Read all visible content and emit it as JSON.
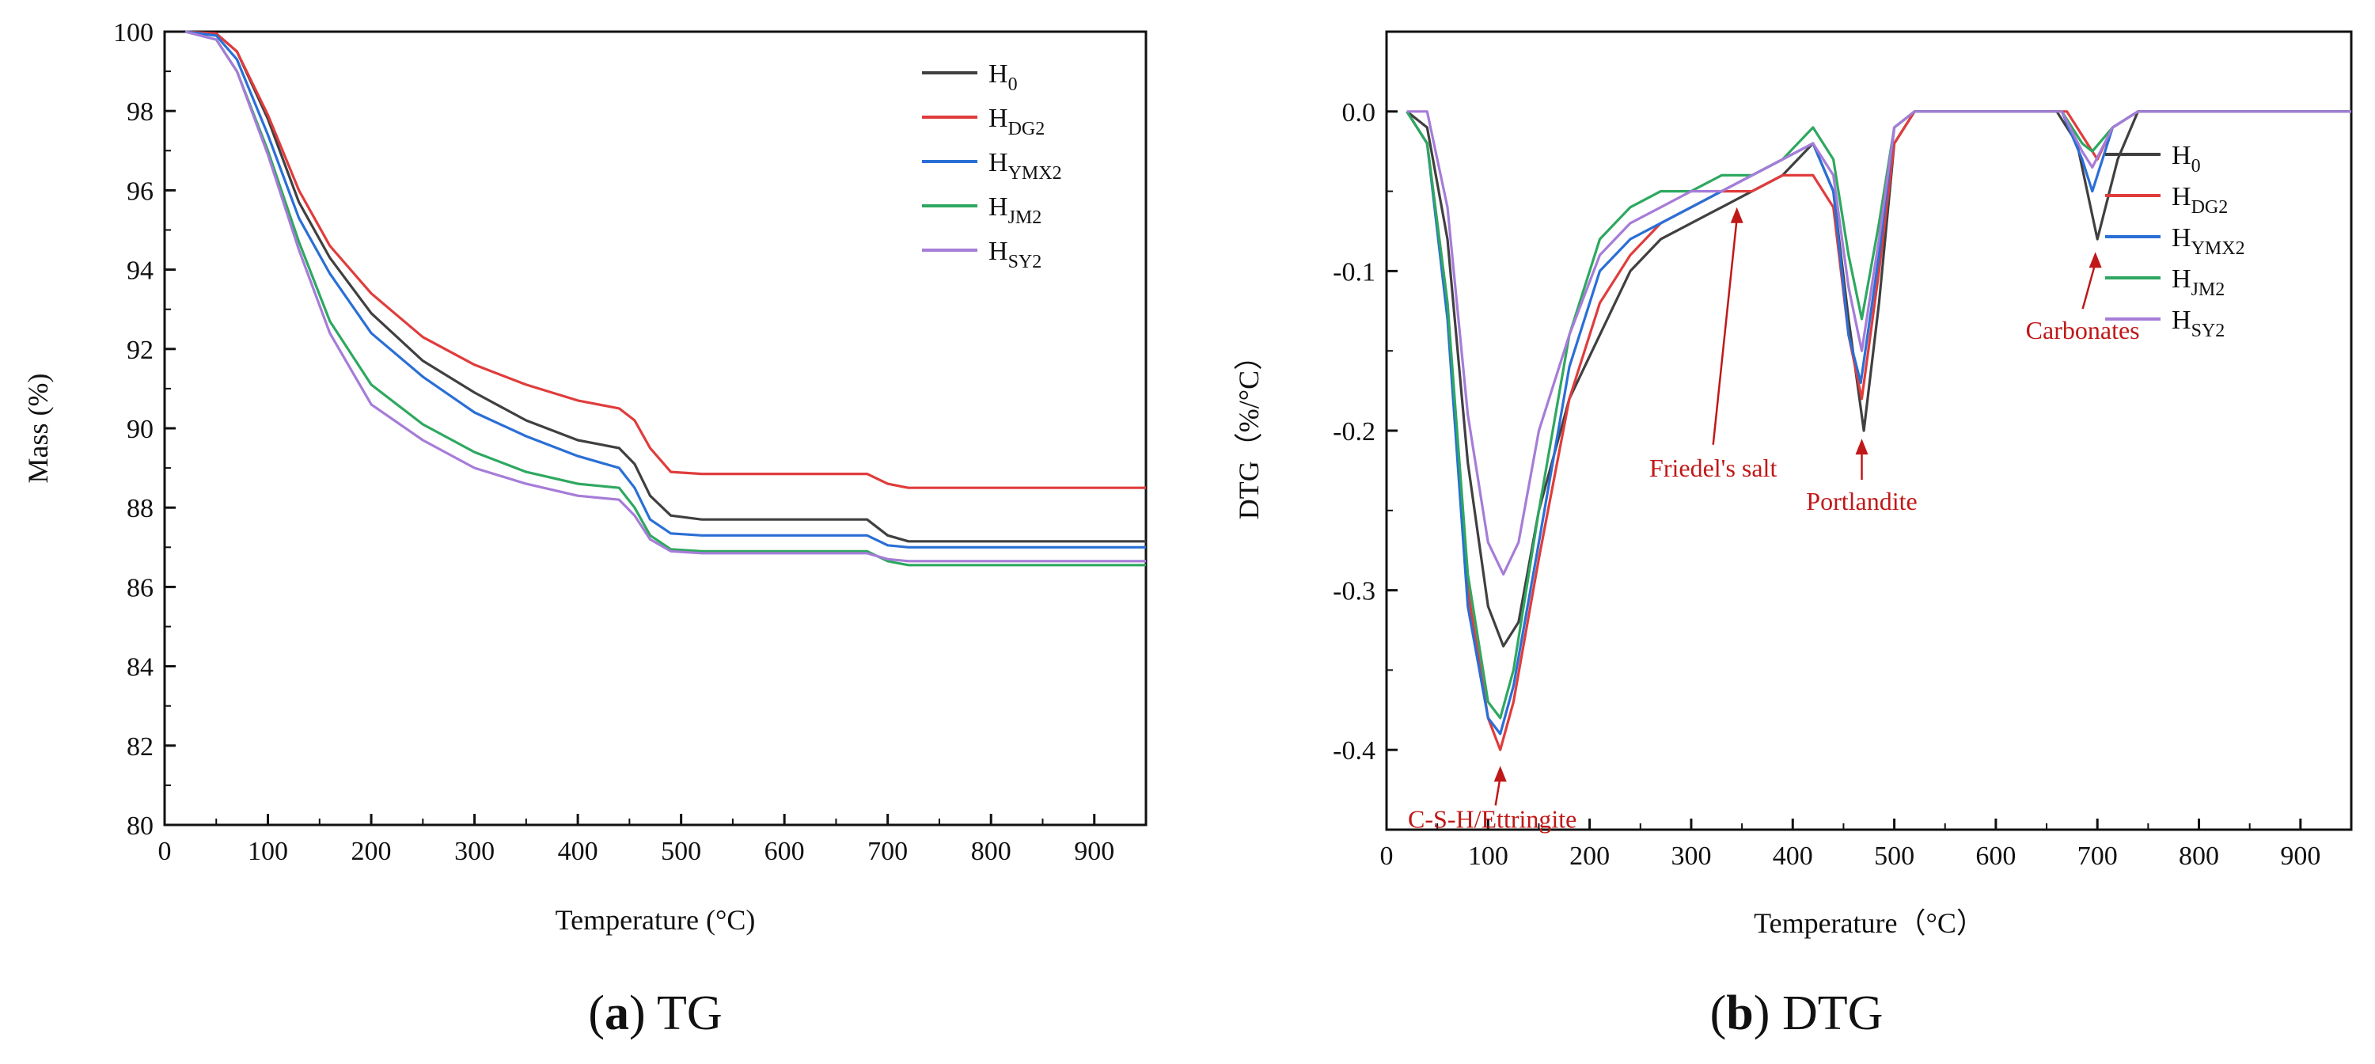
{
  "figure_captions": [
    {
      "letter": "a",
      "rest": " TG"
    },
    {
      "letter": "b",
      "rest": " DTG"
    }
  ],
  "colors": {
    "H0": "#404040",
    "HDG2": "#e03c3c",
    "HYMX2": "#2a6fd6",
    "HJM2": "#2ea860",
    "HSY2": "#a67cd8",
    "annotation": "#c01818",
    "axis": "#111111"
  },
  "legend_entries": [
    {
      "key": "H0",
      "base": "H",
      "sub": "0"
    },
    {
      "key": "HDG2",
      "base": "H",
      "sub": "DG2"
    },
    {
      "key": "HYMX2",
      "base": "H",
      "sub": "YMX2"
    },
    {
      "key": "HJM2",
      "base": "H",
      "sub": "JM2"
    },
    {
      "key": "HSY2",
      "base": "H",
      "sub": "SY2"
    }
  ],
  "chart_data": [
    {
      "id": "tg",
      "type": "line",
      "title": "",
      "xlabel": "Temperature (°C)",
      "ylabel": "Mass (%)",
      "xlim": [
        0,
        950
      ],
      "ylim": [
        80,
        100
      ],
      "xticks": [
        0,
        100,
        200,
        300,
        400,
        500,
        600,
        700,
        800,
        900
      ],
      "yticks": [
        80,
        82,
        84,
        86,
        88,
        90,
        92,
        94,
        96,
        98,
        100
      ],
      "legend_position": "top-right",
      "series": [
        {
          "key": "H0",
          "x": [
            20,
            50,
            70,
            100,
            130,
            160,
            200,
            250,
            300,
            350,
            400,
            440,
            455,
            470,
            490,
            520,
            600,
            680,
            700,
            720,
            800,
            950
          ],
          "y": [
            100,
            99.95,
            99.5,
            97.8,
            95.7,
            94.3,
            92.9,
            91.7,
            90.9,
            90.2,
            89.7,
            89.5,
            89.1,
            88.3,
            87.8,
            87.7,
            87.7,
            87.7,
            87.3,
            87.15,
            87.15,
            87.15
          ]
        },
        {
          "key": "HDG2",
          "x": [
            20,
            50,
            70,
            100,
            130,
            160,
            200,
            250,
            300,
            350,
            400,
            440,
            455,
            470,
            490,
            520,
            600,
            680,
            700,
            720,
            800,
            950
          ],
          "y": [
            100,
            99.95,
            99.5,
            97.9,
            96.0,
            94.6,
            93.4,
            92.3,
            91.6,
            91.1,
            90.7,
            90.5,
            90.2,
            89.5,
            88.9,
            88.85,
            88.85,
            88.85,
            88.6,
            88.5,
            88.5,
            88.5
          ]
        },
        {
          "key": "HYMX2",
          "x": [
            20,
            50,
            70,
            100,
            130,
            160,
            200,
            250,
            300,
            350,
            400,
            440,
            455,
            470,
            490,
            520,
            600,
            680,
            700,
            720,
            800,
            950
          ],
          "y": [
            100,
            99.9,
            99.3,
            97.4,
            95.3,
            93.9,
            92.4,
            91.3,
            90.4,
            89.8,
            89.3,
            89.0,
            88.5,
            87.7,
            87.35,
            87.3,
            87.3,
            87.3,
            87.05,
            87.0,
            87.0,
            87.0
          ]
        },
        {
          "key": "HJM2",
          "x": [
            20,
            50,
            70,
            100,
            130,
            160,
            200,
            250,
            300,
            350,
            400,
            440,
            455,
            470,
            490,
            520,
            600,
            680,
            700,
            720,
            800,
            950
          ],
          "y": [
            100,
            99.8,
            99.0,
            97.0,
            94.7,
            92.7,
            91.1,
            90.1,
            89.4,
            88.9,
            88.6,
            88.5,
            88.0,
            87.3,
            86.95,
            86.9,
            86.9,
            86.9,
            86.65,
            86.55,
            86.55,
            86.55
          ]
        },
        {
          "key": "HSY2",
          "x": [
            20,
            50,
            70,
            100,
            130,
            160,
            200,
            250,
            300,
            350,
            400,
            440,
            455,
            470,
            490,
            520,
            600,
            680,
            700,
            720,
            800,
            950
          ],
          "y": [
            100,
            99.8,
            99.0,
            96.9,
            94.5,
            92.4,
            90.6,
            89.7,
            89.0,
            88.6,
            88.3,
            88.2,
            87.8,
            87.2,
            86.9,
            86.85,
            86.85,
            86.85,
            86.7,
            86.65,
            86.65,
            86.65
          ]
        }
      ]
    },
    {
      "id": "dtg",
      "type": "line",
      "title": "",
      "xlabel": "Temperature（°C）",
      "ylabel": "DTG（%/°C）",
      "xlim": [
        0,
        950
      ],
      "ylim": [
        -0.45,
        0.05
      ],
      "xticks": [
        0,
        100,
        200,
        300,
        400,
        500,
        600,
        700,
        800,
        900
      ],
      "yticks": [
        -0.4,
        -0.3,
        -0.2,
        -0.1,
        0.0
      ],
      "ytick_labels": [
        "-0.4",
        "-0.3",
        "-0.2",
        "-0.1",
        "0.0"
      ],
      "legend_position": "top-right",
      "series": [
        {
          "key": "H0",
          "x": [
            20,
            40,
            60,
            80,
            100,
            115,
            130,
            150,
            180,
            210,
            240,
            270,
            300,
            330,
            360,
            390,
            420,
            440,
            455,
            470,
            485,
            500,
            520,
            660,
            680,
            700,
            720,
            740,
            950
          ],
          "y": [
            0,
            -0.01,
            -0.08,
            -0.22,
            -0.31,
            -0.335,
            -0.32,
            -0.25,
            -0.18,
            -0.14,
            -0.1,
            -0.08,
            -0.07,
            -0.06,
            -0.05,
            -0.04,
            -0.02,
            -0.05,
            -0.13,
            -0.2,
            -0.12,
            -0.02,
            0,
            0,
            -0.02,
            -0.08,
            -0.03,
            0,
            0
          ]
        },
        {
          "key": "HDG2",
          "x": [
            20,
            40,
            60,
            80,
            100,
            112,
            125,
            150,
            180,
            210,
            240,
            270,
            300,
            330,
            360,
            390,
            420,
            440,
            455,
            468,
            485,
            500,
            520,
            670,
            690,
            700,
            715,
            740,
            950
          ],
          "y": [
            0,
            -0.02,
            -0.12,
            -0.3,
            -0.38,
            -0.4,
            -0.37,
            -0.28,
            -0.18,
            -0.12,
            -0.09,
            -0.07,
            -0.06,
            -0.05,
            -0.05,
            -0.04,
            -0.04,
            -0.06,
            -0.14,
            -0.18,
            -0.1,
            -0.02,
            0,
            0,
            -0.02,
            -0.03,
            -0.01,
            0,
            0
          ]
        },
        {
          "key": "HYMX2",
          "x": [
            20,
            40,
            60,
            80,
            100,
            112,
            125,
            150,
            180,
            210,
            240,
            270,
            300,
            330,
            360,
            390,
            420,
            440,
            455,
            467,
            485,
            500,
            520,
            665,
            685,
            695,
            715,
            740,
            950
          ],
          "y": [
            0,
            -0.02,
            -0.13,
            -0.31,
            -0.38,
            -0.39,
            -0.36,
            -0.27,
            -0.16,
            -0.1,
            -0.08,
            -0.07,
            -0.06,
            -0.05,
            -0.04,
            -0.03,
            -0.02,
            -0.05,
            -0.14,
            -0.17,
            -0.09,
            -0.01,
            0,
            0,
            -0.03,
            -0.05,
            -0.01,
            0,
            0
          ]
        },
        {
          "key": "HJM2",
          "x": [
            20,
            40,
            60,
            80,
            100,
            112,
            125,
            150,
            180,
            210,
            240,
            270,
            300,
            330,
            360,
            390,
            420,
            440,
            455,
            468,
            485,
            500,
            520,
            665,
            685,
            695,
            715,
            740,
            950
          ],
          "y": [
            0,
            -0.02,
            -0.12,
            -0.29,
            -0.37,
            -0.38,
            -0.35,
            -0.25,
            -0.14,
            -0.08,
            -0.06,
            -0.05,
            -0.05,
            -0.04,
            -0.04,
            -0.03,
            -0.01,
            -0.03,
            -0.09,
            -0.13,
            -0.07,
            -0.01,
            0,
            0,
            -0.02,
            -0.025,
            -0.01,
            0,
            0
          ]
        },
        {
          "key": "HSY2",
          "x": [
            20,
            40,
            60,
            80,
            100,
            115,
            130,
            150,
            180,
            210,
            240,
            270,
            300,
            330,
            360,
            390,
            420,
            440,
            455,
            468,
            485,
            500,
            520,
            665,
            685,
            695,
            715,
            740,
            950
          ],
          "y": [
            0,
            0,
            -0.06,
            -0.19,
            -0.27,
            -0.29,
            -0.27,
            -0.2,
            -0.14,
            -0.09,
            -0.07,
            -0.06,
            -0.05,
            -0.05,
            -0.04,
            -0.03,
            -0.02,
            -0.04,
            -0.11,
            -0.15,
            -0.08,
            -0.01,
            0,
            0,
            -0.025,
            -0.035,
            -0.01,
            0,
            0
          ]
        }
      ],
      "annotations": [
        {
          "text": "C-S-H/Ettringite",
          "point": [
            112,
            -0.41
          ]
        },
        {
          "text": "Friedel's salt",
          "point": [
            345,
            -0.06
          ]
        },
        {
          "text": "Portlandite",
          "point": [
            468,
            -0.205
          ]
        },
        {
          "text": "Carbonates",
          "point": [
            698,
            -0.088
          ]
        }
      ]
    }
  ]
}
